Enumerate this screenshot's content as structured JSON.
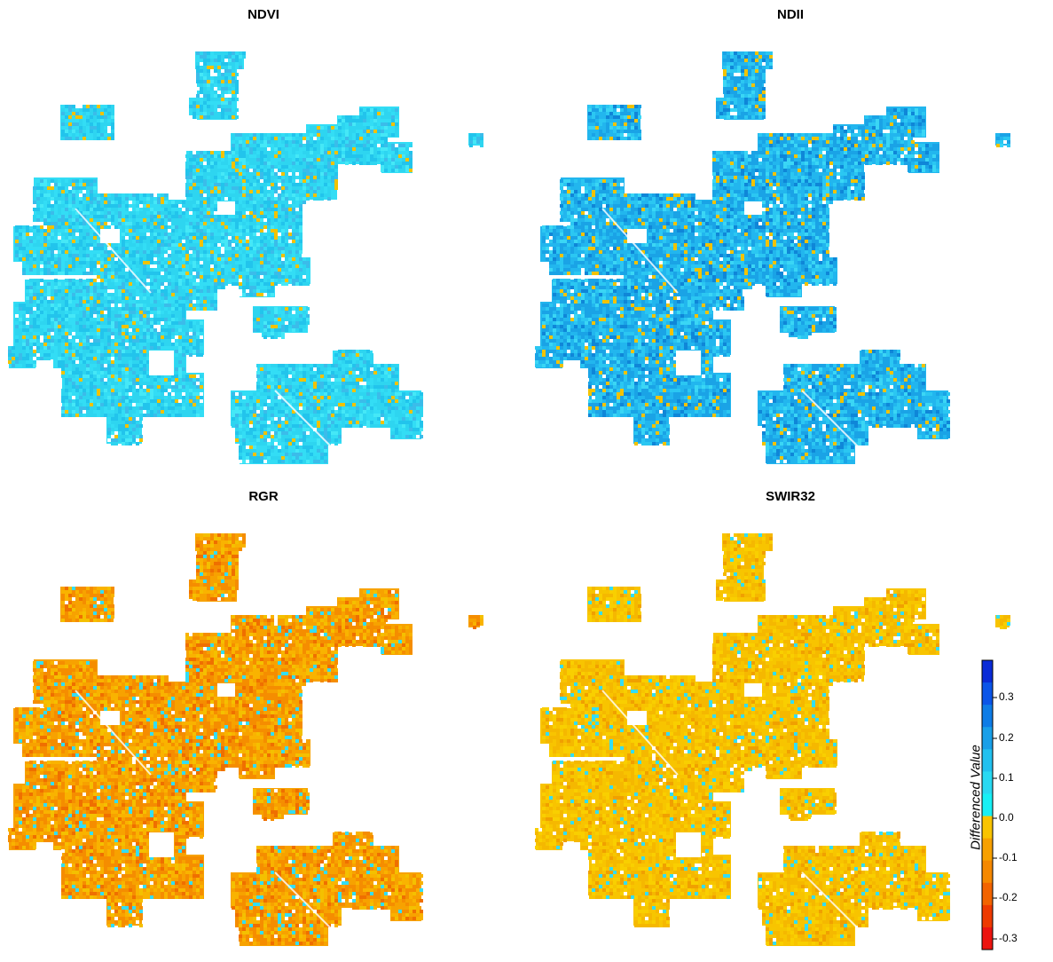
{
  "panels": [
    {
      "title": "NDVI",
      "palette": [
        "#33ddf5",
        "#2ed5f0",
        "#22c4ec",
        "#45e8f7",
        "#f2c200",
        "#3bbcea"
      ],
      "dominant": "cyan"
    },
    {
      "title": "NDII",
      "palette": [
        "#22b6ee",
        "#1aa3e6",
        "#2bc7f2",
        "#0f86d8",
        "#f2c200",
        "#3ad6f5"
      ],
      "dominant": "blue"
    },
    {
      "title": "RGR",
      "palette": [
        "#f7a200",
        "#f58d00",
        "#f9b300",
        "#ef6f00",
        "#33ddf5",
        "#f4c000"
      ],
      "dominant": "orange"
    },
    {
      "title": "SWIR32",
      "palette": [
        "#f8c400",
        "#f5b800",
        "#f9cf00",
        "#f0a000",
        "#33ddf5",
        "#f6c600"
      ],
      "dominant": "yellow"
    }
  ],
  "legend": {
    "title": "Differenced Value",
    "labels": [
      "0.3",
      "0.2",
      "0.1",
      "0.0",
      "-0.1",
      "-0.2",
      "-0.3"
    ],
    "colors": [
      "#0a2bd6",
      "#0b55e8",
      "#0e7ce6",
      "#199fe8",
      "#22c1ef",
      "#29d9f2",
      "#18f0f5",
      "#f9c400",
      "#f7a000",
      "#f58800",
      "#f26400",
      "#ee3a00",
      "#ec1410"
    ]
  }
}
